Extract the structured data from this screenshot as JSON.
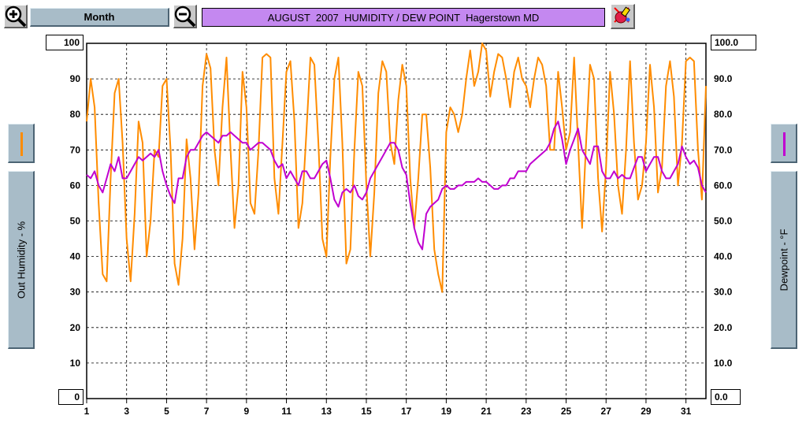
{
  "toolbar": {
    "zoom_in_icon": "zoom-in-icon",
    "zoom_out_icon": "zoom-out-icon",
    "period_label": "Month",
    "title": "AUGUST  2007  HUMIDITY / DEW POINT  Hagerstown MD",
    "paint_icon": "color-palette-icon"
  },
  "colors": {
    "humidity": "#ff8c00",
    "dewpoint": "#c000d0",
    "button_face": "#a8bcc8",
    "title_bg": "#c488f0"
  },
  "chart_data": {
    "type": "line",
    "title": "AUGUST  2007  HUMIDITY / DEW POINT  Hagerstown MD",
    "xlabel": "",
    "ylabel": "Out Humidity - %",
    "y2label": "Dewpoint - °F",
    "xlim": [
      1,
      32
    ],
    "ylim": [
      0,
      100
    ],
    "y2lim": [
      0.0,
      100.0
    ],
    "ylim_labels": [
      "0",
      "100"
    ],
    "y2lim_labels": [
      "0.0",
      "100.0"
    ],
    "x_ticks": [
      "1",
      "3",
      "5",
      "7",
      "9",
      "11",
      "13",
      "15",
      "17",
      "19",
      "21",
      "23",
      "25",
      "27",
      "29",
      "31"
    ],
    "y_ticks": [
      "10",
      "20",
      "30",
      "40",
      "50",
      "60",
      "70",
      "80",
      "90"
    ],
    "y2_ticks": [
      "10.0",
      "20.0",
      "30.0",
      "40.0",
      "50.0",
      "60.0",
      "70.0",
      "80.0",
      "90.0"
    ],
    "grid": true,
    "series": [
      {
        "name": "Out Humidity - %",
        "axis": "left",
        "x": [
          1.0,
          1.2,
          1.4,
          1.6,
          1.8,
          2.0,
          2.2,
          2.4,
          2.6,
          2.8,
          3.0,
          3.2,
          3.4,
          3.6,
          3.8,
          4.0,
          4.2,
          4.4,
          4.6,
          4.8,
          5.0,
          5.2,
          5.4,
          5.6,
          5.8,
          6.0,
          6.2,
          6.4,
          6.6,
          6.8,
          7.0,
          7.2,
          7.4,
          7.6,
          7.8,
          8.0,
          8.2,
          8.4,
          8.6,
          8.8,
          9.0,
          9.2,
          9.4,
          9.6,
          9.8,
          10.0,
          10.2,
          10.4,
          10.6,
          10.8,
          11.0,
          11.2,
          11.4,
          11.6,
          11.8,
          12.0,
          12.2,
          12.4,
          12.6,
          12.8,
          13.0,
          13.2,
          13.4,
          13.6,
          13.8,
          14.0,
          14.2,
          14.4,
          14.6,
          14.8,
          15.0,
          15.2,
          15.4,
          15.6,
          15.8,
          16.0,
          16.2,
          16.4,
          16.6,
          16.8,
          17.0,
          17.2,
          17.4,
          17.6,
          17.8,
          18.0,
          18.2,
          18.4,
          18.6,
          18.8,
          19.0,
          19.2,
          19.4,
          19.6,
          19.8,
          20.0,
          20.2,
          20.4,
          20.6,
          20.8,
          21.0,
          21.2,
          21.4,
          21.6,
          21.8,
          22.0,
          22.2,
          22.4,
          22.6,
          22.8,
          23.0,
          23.2,
          23.4,
          23.6,
          23.8,
          24.0,
          24.2,
          24.4,
          24.6,
          24.8,
          25.0,
          25.2,
          25.4,
          25.6,
          25.8,
          26.0,
          26.2,
          26.4,
          26.6,
          26.8,
          27.0,
          27.2,
          27.4,
          27.6,
          27.8,
          28.0,
          28.2,
          28.4,
          28.6,
          28.8,
          29.0,
          29.2,
          29.4,
          29.6,
          29.8,
          30.0,
          30.2,
          30.4,
          30.6,
          30.8,
          31.0,
          31.2,
          31.4,
          31.6,
          31.8,
          32.0
        ],
        "values": [
          78,
          90,
          82,
          55,
          35,
          33,
          62,
          86,
          90,
          72,
          45,
          33,
          52,
          78,
          72,
          40,
          50,
          70,
          68,
          88,
          90,
          70,
          38,
          32,
          45,
          73,
          62,
          42,
          58,
          88,
          97,
          93,
          70,
          60,
          82,
          96,
          70,
          48,
          60,
          92,
          82,
          55,
          52,
          70,
          96,
          97,
          96,
          62,
          52,
          72,
          92,
          95,
          78,
          48,
          55,
          75,
          96,
          94,
          72,
          45,
          40,
          68,
          90,
          96,
          72,
          38,
          42,
          70,
          92,
          88,
          60,
          40,
          58,
          86,
          95,
          92,
          72,
          66,
          84,
          94,
          88,
          62,
          48,
          62,
          80,
          80,
          65,
          42,
          35,
          30,
          75,
          82,
          80,
          75,
          80,
          90,
          98,
          88,
          92,
          100,
          98,
          85,
          92,
          97,
          96,
          90,
          82,
          92,
          96,
          90,
          88,
          82,
          90,
          96,
          94,
          88,
          70,
          70,
          92,
          82,
          70,
          75,
          96,
          72,
          48,
          72,
          94,
          90,
          62,
          47,
          65,
          92,
          80,
          60,
          52,
          70,
          95,
          72,
          56,
          60,
          72,
          94,
          82,
          58,
          65,
          88,
          95,
          85,
          60,
          72,
          95,
          96,
          95,
          70,
          56,
          88
        ],
        "line_colour": "#ff8c00"
      },
      {
        "name": "Dewpoint - °F",
        "axis": "right",
        "x": [
          1.0,
          1.2,
          1.4,
          1.6,
          1.8,
          2.0,
          2.2,
          2.4,
          2.6,
          2.8,
          3.0,
          3.2,
          3.4,
          3.6,
          3.8,
          4.0,
          4.2,
          4.4,
          4.6,
          4.8,
          5.0,
          5.2,
          5.4,
          5.6,
          5.8,
          6.0,
          6.2,
          6.4,
          6.6,
          6.8,
          7.0,
          7.2,
          7.4,
          7.6,
          7.8,
          8.0,
          8.2,
          8.4,
          8.6,
          8.8,
          9.0,
          9.2,
          9.4,
          9.6,
          9.8,
          10.0,
          10.2,
          10.4,
          10.6,
          10.8,
          11.0,
          11.2,
          11.4,
          11.6,
          11.8,
          12.0,
          12.2,
          12.4,
          12.6,
          12.8,
          13.0,
          13.2,
          13.4,
          13.6,
          13.8,
          14.0,
          14.2,
          14.4,
          14.6,
          14.8,
          15.0,
          15.2,
          15.4,
          15.6,
          15.8,
          16.0,
          16.2,
          16.4,
          16.6,
          16.8,
          17.0,
          17.2,
          17.4,
          17.6,
          17.8,
          18.0,
          18.2,
          18.4,
          18.6,
          18.8,
          19.0,
          19.2,
          19.4,
          19.6,
          19.8,
          20.0,
          20.2,
          20.4,
          20.6,
          20.8,
          21.0,
          21.2,
          21.4,
          21.6,
          21.8,
          22.0,
          22.2,
          22.4,
          22.6,
          22.8,
          23.0,
          23.2,
          23.4,
          23.6,
          23.8,
          24.0,
          24.2,
          24.4,
          24.6,
          24.8,
          25.0,
          25.2,
          25.4,
          25.6,
          25.8,
          26.0,
          26.2,
          26.4,
          26.6,
          26.8,
          27.0,
          27.2,
          27.4,
          27.6,
          27.8,
          28.0,
          28.2,
          28.4,
          28.6,
          28.8,
          29.0,
          29.2,
          29.4,
          29.6,
          29.8,
          30.0,
          30.2,
          30.4,
          30.6,
          30.8,
          31.0,
          31.2,
          31.4,
          31.6,
          31.8,
          32.0
        ],
        "values": [
          63,
          62,
          64,
          60,
          58,
          62,
          66,
          64,
          68,
          62,
          62,
          64,
          66,
          68,
          67,
          68,
          69,
          68,
          70,
          64,
          60,
          57,
          55,
          62,
          62,
          68,
          70,
          70,
          72,
          74,
          75,
          74,
          73,
          72,
          74,
          74,
          75,
          74,
          73,
          72,
          72,
          70,
          71,
          72,
          72,
          71,
          70,
          67,
          65,
          66,
          62,
          64,
          62,
          60,
          64,
          64,
          62,
          62,
          64,
          66,
          67,
          62,
          56,
          54,
          58,
          59,
          58,
          60,
          57,
          56,
          58,
          62,
          64,
          66,
          68,
          70,
          72,
          72,
          70,
          65,
          63,
          55,
          48,
          44,
          42,
          52,
          54,
          55,
          56,
          59,
          60,
          59,
          59,
          60,
          60,
          61,
          61,
          61,
          62,
          61,
          61,
          60,
          59,
          59,
          60,
          60,
          62,
          62,
          64,
          64,
          64,
          66,
          67,
          68,
          69,
          70,
          72,
          76,
          78,
          73,
          66,
          70,
          73,
          76,
          70,
          68,
          66,
          71,
          71,
          64,
          62,
          62,
          64,
          62,
          63,
          62,
          62,
          65,
          68,
          68,
          64,
          66,
          68,
          68,
          64,
          62,
          62,
          64,
          66,
          71,
          68,
          66,
          67,
          65,
          60,
          58
        ],
        "line_colour": "#c000d0"
      }
    ]
  }
}
